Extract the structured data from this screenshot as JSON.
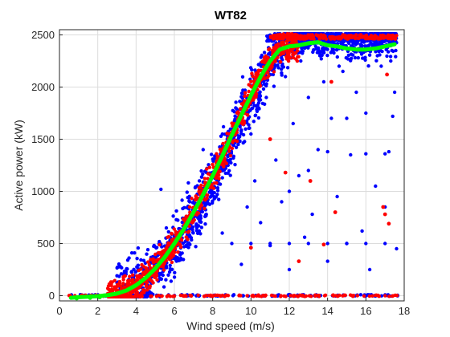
{
  "chart_data": {
    "type": "scatter",
    "title": "WT82",
    "xlabel": "Wind speed (m/s)",
    "ylabel": "Active power (kW)",
    "xlim": [
      0,
      18
    ],
    "ylim": [
      -50,
      2550
    ],
    "xticks": [
      0,
      2,
      4,
      6,
      8,
      10,
      12,
      14,
      16,
      18
    ],
    "yticks": [
      0,
      500,
      1000,
      1500,
      2000,
      2500
    ],
    "grid": true,
    "colors": {
      "normal": "#0000ff",
      "curve_band": "#ff0000",
      "fitted_curve": "#00ff00"
    },
    "series": [
      {
        "role": "scatter-outliers",
        "points": [
          [
            5.3,
            1020
          ],
          [
            6.0,
            520
          ],
          [
            6.8,
            900
          ],
          [
            7.5,
            1400
          ],
          [
            8.5,
            600
          ],
          [
            9.2,
            1800
          ],
          [
            9.5,
            300
          ],
          [
            10.2,
            1100
          ],
          [
            10.5,
            700
          ],
          [
            10.8,
            1900
          ],
          [
            11.0,
            480
          ],
          [
            11.3,
            1300
          ],
          [
            11.6,
            900
          ],
          [
            11.8,
            2100
          ],
          [
            12.0,
            250
          ],
          [
            12.2,
            1650
          ],
          [
            12.5,
            1150
          ],
          [
            12.8,
            560
          ],
          [
            13.0,
            1900
          ],
          [
            13.2,
            780
          ],
          [
            13.5,
            1400
          ],
          [
            13.8,
            2050
          ],
          [
            14.0,
            330
          ],
          [
            14.2,
            1700
          ],
          [
            14.5,
            950
          ],
          [
            14.8,
            2150
          ],
          [
            15.0,
            500
          ],
          [
            15.2,
            1350
          ],
          [
            15.5,
            1950
          ],
          [
            15.8,
            620
          ],
          [
            16.0,
            1750
          ],
          [
            16.2,
            250
          ],
          [
            16.5,
            1050
          ],
          [
            16.8,
            2200
          ],
          [
            17.0,
            850
          ],
          [
            17.2,
            1380
          ],
          [
            17.4,
            1720
          ],
          [
            17.5,
            1950
          ],
          [
            17.6,
            450
          ],
          [
            10.0,
            1550
          ],
          [
            9.8,
            850
          ],
          [
            11.2,
            2150
          ],
          [
            12.6,
            2250
          ],
          [
            13.6,
            2300
          ],
          [
            14.6,
            2200
          ],
          [
            15.6,
            2280
          ],
          [
            16.6,
            2300
          ],
          [
            17.3,
            2250
          ],
          [
            12.0,
            1000
          ],
          [
            13.0,
            1200
          ],
          [
            14.0,
            1380
          ],
          [
            15.0,
            1700
          ],
          [
            16.0,
            1360
          ],
          [
            17.0,
            1360
          ],
          [
            9.0,
            500
          ],
          [
            10.0,
            500
          ],
          [
            11.0,
            500
          ],
          [
            12.0,
            500
          ],
          [
            13.0,
            500
          ],
          [
            14.0,
            500
          ],
          [
            15.0,
            500
          ],
          [
            16.0,
            500
          ],
          [
            17.0,
            500
          ]
        ]
      },
      {
        "role": "scatter-red-outliers",
        "points": [
          [
            11.8,
            1180
          ],
          [
            13.1,
            1100
          ],
          [
            12.5,
            330
          ],
          [
            14.4,
            800
          ],
          [
            16.9,
            850
          ],
          [
            17.0,
            780
          ],
          [
            17.2,
            690
          ],
          [
            17.1,
            2120
          ],
          [
            14.2,
            2050
          ],
          [
            11.0,
            1500
          ],
          [
            10.0,
            460
          ],
          [
            13.8,
            490
          ]
        ]
      },
      {
        "name": "",
        "role": "power-curve",
        "x": [
          0.6,
          1.0,
          1.5,
          2.0,
          2.5,
          3.0,
          3.5,
          4.0,
          4.5,
          5.0,
          5.5,
          6.0,
          6.5,
          7.0,
          7.5,
          8.0,
          8.5,
          9.0,
          9.5,
          10.0,
          10.5,
          11.0,
          11.5,
          12.0,
          12.5,
          13.0,
          13.5,
          14.0,
          14.5,
          15.0,
          15.5,
          16.0,
          16.5,
          17.0,
          17.5
        ],
        "y": [
          -20,
          -15,
          -10,
          -5,
          5,
          20,
          50,
          100,
          170,
          260,
          370,
          500,
          640,
          800,
          970,
          1150,
          1340,
          1540,
          1730,
          1920,
          2100,
          2250,
          2360,
          2390,
          2400,
          2420,
          2430,
          2400,
          2390,
          2370,
          2360,
          2360,
          2370,
          2390,
          2410
        ]
      }
    ]
  }
}
